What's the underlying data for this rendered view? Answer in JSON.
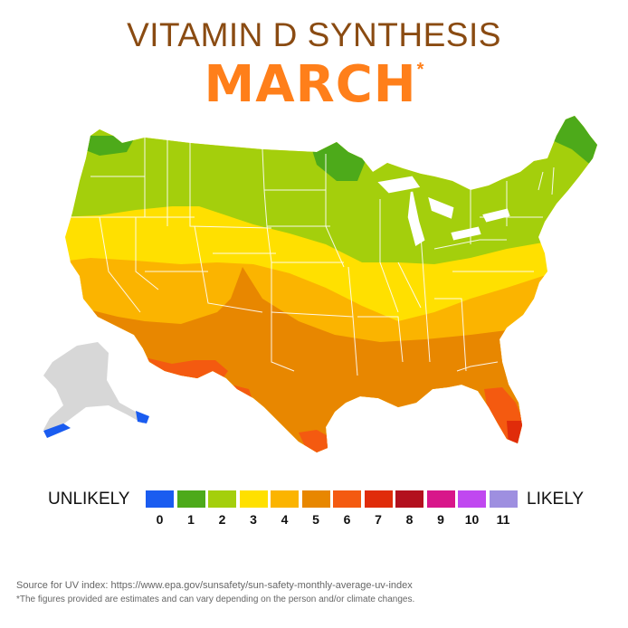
{
  "header": {
    "title": "VITAMIN D SYNTHESIS",
    "month": "MARCH",
    "month_marker": "*"
  },
  "legend": {
    "unlikely_label": "UNLIKELY",
    "likely_label": "LIKELY",
    "scale": [
      {
        "value": "0",
        "color": "#1a5cf0"
      },
      {
        "value": "1",
        "color": "#4daa1a"
      },
      {
        "value": "2",
        "color": "#a4cf0c"
      },
      {
        "value": "3",
        "color": "#ffe000"
      },
      {
        "value": "4",
        "color": "#fbb400"
      },
      {
        "value": "5",
        "color": "#e88700"
      },
      {
        "value": "6",
        "color": "#f45a10"
      },
      {
        "value": "7",
        "color": "#e02c0a"
      },
      {
        "value": "8",
        "color": "#b3101e"
      },
      {
        "value": "9",
        "color": "#d8168a"
      },
      {
        "value": "10",
        "color": "#c048f0"
      },
      {
        "value": "11",
        "color": "#9e8fe0"
      }
    ]
  },
  "map": {
    "regions": [
      {
        "region": "Pacific Northwest / Northern Rockies",
        "uv_index": 2
      },
      {
        "region": "Northern Minnesota / Maine",
        "uv_index": 1
      },
      {
        "region": "Great Lakes / Northeast",
        "uv_index": 2
      },
      {
        "region": "Central latitudes",
        "uv_index": 3
      },
      {
        "region": "Southern-central band",
        "uv_index": 4
      },
      {
        "region": "Southwest / Gulf states",
        "uv_index": 5
      },
      {
        "region": "Southern Arizona / South Texas / Central Florida",
        "uv_index": 6
      },
      {
        "region": "Southern Florida tip",
        "uv_index": 7
      },
      {
        "region": "Alaska",
        "uv_index": null
      },
      {
        "region": "Aleutian Islands / Alaska panhandle tips",
        "uv_index": 0
      }
    ],
    "alaska_color": "#d7d7d7"
  },
  "footer": {
    "source": "Source for UV index: https://www.epa.gov/sunsafety/sun-safety-monthly-average-uv-index",
    "note": "*The figures provided are estimates and can vary depending on the person and/or climate changes."
  }
}
